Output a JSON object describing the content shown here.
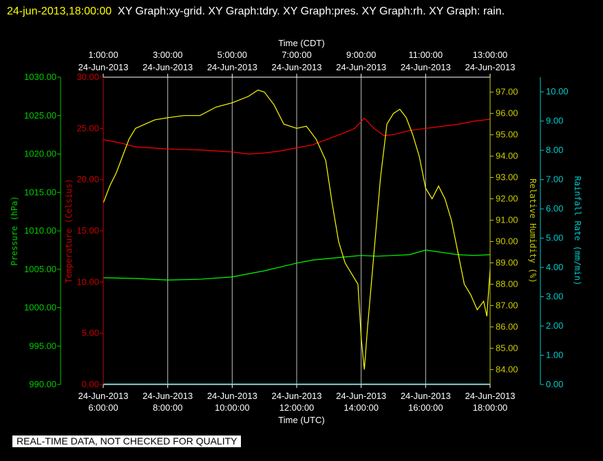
{
  "header": {
    "timestamp": "24-jun-2013,18:00:00",
    "graphs": "XY Graph:xy-grid.  XY Graph:tdry.  XY Graph:pres.  XY Graph:rh.  XY Graph: rain."
  },
  "footer": {
    "notice": "REAL-TIME DATA, NOT CHECKED FOR QUALITY"
  },
  "chart_data": {
    "type": "line",
    "grid": true,
    "x_top": {
      "label": "Time (CDT)",
      "ticks": [
        {
          "time": "1:00:00",
          "date": "24-Jun-2013"
        },
        {
          "time": "3:00:00",
          "date": "24-Jun-2013"
        },
        {
          "time": "5:00:00",
          "date": "24-Jun-2013"
        },
        {
          "time": "7:00:00",
          "date": "24-Jun-2013"
        },
        {
          "time": "9:00:00",
          "date": "24-Jun-2013"
        },
        {
          "time": "11:00:00",
          "date": "24-Jun-2013"
        },
        {
          "time": "13:00:00",
          "date": "24-Jun-2013"
        }
      ]
    },
    "x_bottom": {
      "label": "Time (UTC)",
      "range": [
        6,
        18
      ],
      "ticks": [
        {
          "date": "24-Jun-2013",
          "time": "6:00:00"
        },
        {
          "date": "24-Jun-2013",
          "time": "8:00:00"
        },
        {
          "date": "24-Jun-2013",
          "time": "10:00:00"
        },
        {
          "date": "24-Jun-2013",
          "time": "12:00:00"
        },
        {
          "date": "24-Jun-2013",
          "time": "14:00:00"
        },
        {
          "date": "24-Jun-2013",
          "time": "16:00:00"
        },
        {
          "date": "24-Jun-2013",
          "time": "18:00:00"
        }
      ]
    },
    "axes": {
      "pressure": {
        "label": "Pressure (hPa)",
        "color": "#00cc00",
        "range": [
          990,
          1030
        ],
        "ticks": [
          "990.00",
          "995.00",
          "1000.00",
          "1005.00",
          "1010.00",
          "1015.00",
          "1020.00",
          "1025.00",
          "1030.00"
        ]
      },
      "temperature": {
        "label": "Temperature (Celsius)",
        "color": "#cc0000",
        "range": [
          0,
          30
        ],
        "ticks": [
          "0.00",
          "5.00",
          "10.00",
          "15.00",
          "20.00",
          "25.00",
          "30.00"
        ]
      },
      "humidity": {
        "label": "Relative Humidity (%)",
        "color": "#cccc00",
        "range": [
          83.3,
          97.7
        ],
        "ticks": [
          "84.00",
          "85.00",
          "86.00",
          "87.00",
          "88.00",
          "89.00",
          "90.00",
          "91.00",
          "92.00",
          "93.00",
          "94.00",
          "95.00",
          "96.00",
          "97.00"
        ]
      },
      "rainfall": {
        "label": "Rainfall Rate (mm/min)",
        "color": "#00cccc",
        "range": [
          0,
          10.5
        ],
        "ticks": [
          "0.00",
          "1.00",
          "2.00",
          "3.00",
          "4.00",
          "5.00",
          "6.00",
          "7.00",
          "8.00",
          "9.00",
          "10.00"
        ]
      }
    },
    "series": [
      {
        "name": "tdry",
        "axis": "temperature",
        "color": "#ff0000",
        "x": [
          6.0,
          6.5,
          7.0,
          8.0,
          9.0,
          10.0,
          10.5,
          11.0,
          11.5,
          12.0,
          12.5,
          13.0,
          13.5,
          13.8,
          14.1,
          14.4,
          14.7,
          15.0,
          15.5,
          16.0,
          16.5,
          17.0,
          17.5,
          18.0
        ],
        "y": [
          23.9,
          23.6,
          23.2,
          23.0,
          22.9,
          22.7,
          22.5,
          22.6,
          22.8,
          23.1,
          23.4,
          24.0,
          24.6,
          25.0,
          26.0,
          25.0,
          24.3,
          24.4,
          24.8,
          25.0,
          25.2,
          25.4,
          25.7,
          25.9
        ]
      },
      {
        "name": "pres",
        "axis": "pressure",
        "color": "#00ff00",
        "x": [
          6.0,
          7.0,
          8.0,
          9.0,
          10.0,
          10.5,
          11.0,
          11.5,
          12.0,
          12.5,
          13.0,
          13.5,
          14.0,
          14.5,
          15.0,
          15.5,
          16.0,
          16.5,
          17.0,
          17.5,
          18.0
        ],
        "y": [
          1003.9,
          1003.8,
          1003.6,
          1003.7,
          1004.0,
          1004.4,
          1004.8,
          1005.3,
          1005.8,
          1006.2,
          1006.4,
          1006.6,
          1006.8,
          1006.7,
          1006.8,
          1006.9,
          1007.5,
          1007.2,
          1006.9,
          1006.8,
          1006.9
        ]
      },
      {
        "name": "rh",
        "axis": "humidity",
        "color": "#ffff00",
        "x": [
          6.0,
          6.2,
          6.4,
          6.6,
          6.8,
          7.0,
          7.3,
          7.6,
          8.0,
          8.5,
          9.0,
          9.5,
          10.0,
          10.5,
          10.8,
          11.0,
          11.3,
          11.6,
          12.0,
          12.3,
          12.6,
          12.9,
          13.1,
          13.3,
          13.5,
          13.7,
          13.9,
          14.0,
          14.1,
          14.2,
          14.4,
          14.6,
          14.8,
          15.0,
          15.2,
          15.4,
          15.6,
          15.8,
          16.0,
          16.2,
          16.4,
          16.6,
          16.8,
          17.0,
          17.2,
          17.4,
          17.6,
          17.8,
          17.9,
          18.0
        ],
        "y": [
          91.8,
          92.6,
          93.2,
          94.0,
          94.8,
          95.3,
          95.5,
          95.7,
          95.8,
          95.9,
          95.9,
          96.3,
          96.5,
          96.8,
          97.1,
          97.0,
          96.4,
          95.5,
          95.3,
          95.4,
          94.8,
          93.8,
          91.8,
          90.0,
          89.0,
          88.5,
          88.0,
          85.5,
          84.0,
          86.0,
          89.5,
          93.0,
          95.5,
          96.0,
          96.2,
          95.8,
          95.0,
          94.0,
          92.5,
          92.0,
          92.6,
          92.0,
          91.0,
          89.5,
          88.0,
          87.5,
          86.8,
          87.2,
          86.5,
          88.7
        ]
      },
      {
        "name": "rain",
        "axis": "rainfall",
        "color": "#00cccc",
        "x": [
          6.0,
          18.0
        ],
        "y": [
          0.02,
          0.02
        ]
      }
    ]
  }
}
